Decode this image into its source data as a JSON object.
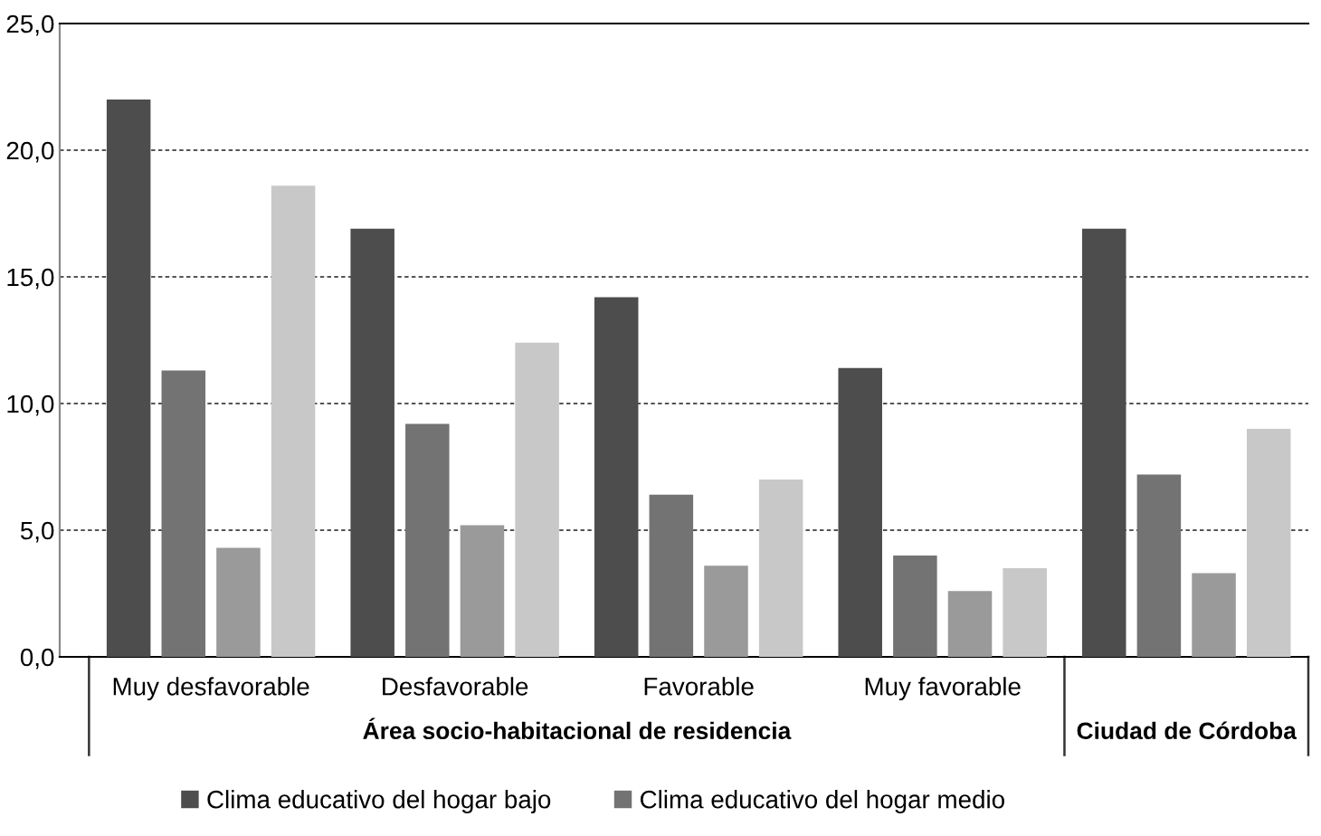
{
  "chart_data": {
    "type": "bar",
    "categories": [
      "Muy desfavorable",
      "Desfavorable",
      "Favorable",
      "Muy favorable",
      null
    ],
    "series": [
      {
        "name": "Clima educativo del hogar bajo",
        "color": "#4d4d4d",
        "values": [
          22.0,
          16.9,
          14.2,
          11.4,
          16.9
        ]
      },
      {
        "name": "Clima educativo del hogar medio",
        "color": "#737373",
        "values": [
          11.3,
          9.2,
          6.4,
          4.0,
          7.2
        ]
      },
      {
        "color": "#9a9a9a",
        "values": [
          4.3,
          5.2,
          3.6,
          2.6,
          3.3
        ]
      },
      {
        "color": "#c8c8c8",
        "values": [
          18.6,
          12.4,
          7.0,
          3.5,
          9.0
        ]
      }
    ],
    "ylim": [
      0,
      25
    ],
    "yticks": [
      {
        "value": 0,
        "label": "0,0"
      },
      {
        "value": 5,
        "label": "5,0"
      },
      {
        "value": 10,
        "label": "10,0"
      },
      {
        "value": 15,
        "label": "15,0"
      },
      {
        "value": 20,
        "label": "20,0"
      },
      {
        "value": 25,
        "label": "25,0"
      }
    ],
    "grid": "y",
    "legend": "bottom",
    "annotations": [
      "Área socio-habitacional de residencia",
      "Ciudad de Córdoba"
    ]
  }
}
